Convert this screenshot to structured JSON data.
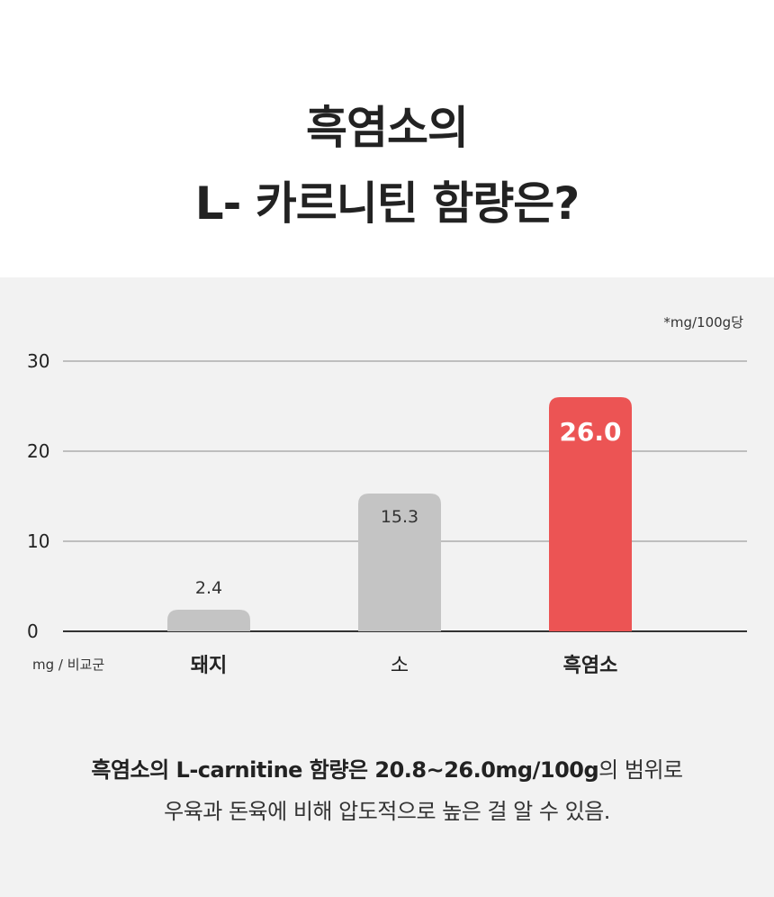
{
  "title": {
    "line1": "흑염소의",
    "line2": "L- 카르니틴 함량은?"
  },
  "chart_data": {
    "type": "bar",
    "unit_note": "*mg/100g당",
    "y_ticks": [
      "30",
      "20",
      "10",
      "0"
    ],
    "ylim": [
      0,
      30
    ],
    "x_axis_label": "mg / 비교군",
    "categories": [
      "돼지",
      "소",
      "흑염소"
    ],
    "values": [
      2.4,
      15.3,
      26.0
    ],
    "value_labels": [
      "2.4",
      "15.3",
      "26.0"
    ],
    "highlight_index": 2,
    "grid": true
  },
  "colors": {
    "bar_default": "#c4c4c4",
    "bar_highlight": "#ec5454",
    "panel_bg": "#f2f2f2",
    "gridline": "#8a8a8a",
    "axis": "#333333"
  },
  "note": {
    "line1_bold": "흑염소의 L-carnitine 함량은 20.8~26.0mg/100g",
    "line1_rest": "의 범위로",
    "line2": "우육과 돈육에 비해 압도적으로 높은 걸 알 수 있음."
  }
}
